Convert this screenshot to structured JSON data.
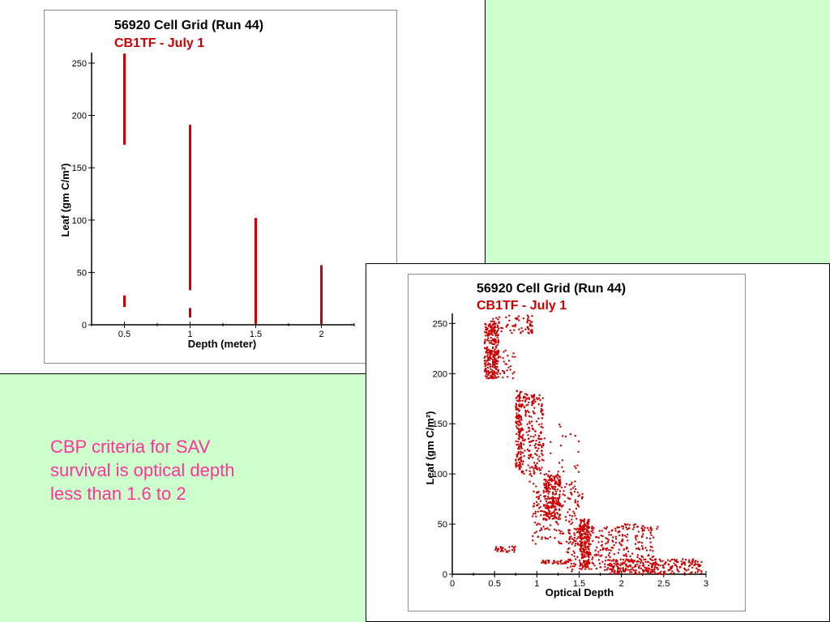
{
  "colors": {
    "background": "#ccffcc",
    "series": "#cc0000",
    "note_text": "#ff3399"
  },
  "note": {
    "lines": [
      "CBP criteria for SAV",
      "survival is optical depth",
      "less than 1.6 to 2"
    ]
  },
  "chart_data": [
    {
      "type": "scatter",
      "title": "56920 Cell Grid (Run 44)",
      "subtitle": "CB1TF - July 1",
      "xlabel": "Depth (meter)",
      "ylabel": "Leaf (gm C/m²)",
      "xlim": [
        0.25,
        2.25
      ],
      "ylim": [
        0,
        260
      ],
      "xticks": [
        0.5,
        1,
        1.5,
        2
      ],
      "xtick_labels": [
        "0.5",
        "1",
        "1.5",
        "2"
      ],
      "yticks": [
        0,
        50,
        100,
        150,
        200,
        250
      ],
      "ytick_labels": [
        "0",
        "50",
        "100",
        "150",
        "200",
        "250"
      ],
      "grid": false,
      "segments": [
        {
          "x": 0.5,
          "y_min": 172,
          "y_max": 259
        },
        {
          "x": 0.5,
          "y_min": 17,
          "y_max": 28
        },
        {
          "x": 1.0,
          "y_min": 33,
          "y_max": 191
        },
        {
          "x": 1.0,
          "y_min": 7,
          "y_max": 16
        },
        {
          "x": 1.5,
          "y_min": 1,
          "y_max": 102
        },
        {
          "x": 2.0,
          "y_min": 1,
          "y_max": 57
        }
      ]
    },
    {
      "type": "scatter",
      "title": "56920 Cell Grid (Run 44)",
      "subtitle": "CB1TF - July 1",
      "xlabel": "Optical Depth",
      "ylabel": "Leaf (gm C/m²)",
      "xlim": [
        0,
        3
      ],
      "ylim": [
        0,
        260
      ],
      "xticks": [
        0,
        0.5,
        1,
        1.5,
        2,
        2.5,
        3
      ],
      "xtick_labels": [
        "0",
        "0.5",
        "1",
        "1.5",
        "2",
        "2.5",
        "3"
      ],
      "yticks": [
        0,
        50,
        100,
        150,
        200,
        250
      ],
      "ytick_labels": [
        "0",
        "50",
        "100",
        "150",
        "200",
        "250"
      ],
      "grid": false,
      "clusters": [
        {
          "x": [
            0.38,
            0.55
          ],
          "y": [
            195,
            250
          ],
          "n": 260
        },
        {
          "x": [
            0.4,
            0.95
          ],
          "y": [
            240,
            258
          ],
          "n": 60
        },
        {
          "x": [
            0.88,
            0.95
          ],
          "y": [
            240,
            250
          ],
          "n": 15
        },
        {
          "x": [
            0.45,
            0.75
          ],
          "y": [
            195,
            225
          ],
          "n": 40
        },
        {
          "x": [
            0.75,
            0.82
          ],
          "y": [
            105,
            185
          ],
          "n": 110
        },
        {
          "x": [
            0.78,
            1.08
          ],
          "y": [
            100,
            180
          ],
          "n": 200
        },
        {
          "x": [
            0.82,
            1.0
          ],
          "y": [
            170,
            180
          ],
          "n": 25
        },
        {
          "x": [
            1.08,
            1.28
          ],
          "y": [
            55,
            100
          ],
          "n": 200
        },
        {
          "x": [
            0.95,
            1.55
          ],
          "y": [
            30,
            90
          ],
          "n": 180
        },
        {
          "x": [
            1.5,
            1.62
          ],
          "y": [
            5,
            55
          ],
          "n": 180
        },
        {
          "x": [
            1.35,
            2.4
          ],
          "y": [
            2,
            48
          ],
          "n": 320
        },
        {
          "x": [
            1.8,
            2.95
          ],
          "y": [
            0,
            15
          ],
          "n": 250
        },
        {
          "x": [
            2.0,
            2.45
          ],
          "y": [
            45,
            50
          ],
          "n": 20
        },
        {
          "x": [
            0.5,
            0.75
          ],
          "y": [
            22,
            28
          ],
          "n": 30
        },
        {
          "x": [
            1.05,
            1.45
          ],
          "y": [
            10,
            14
          ],
          "n": 40
        },
        {
          "x": [
            0.9,
            1.5
          ],
          "y": [
            90,
            150
          ],
          "n": 40
        }
      ]
    }
  ]
}
